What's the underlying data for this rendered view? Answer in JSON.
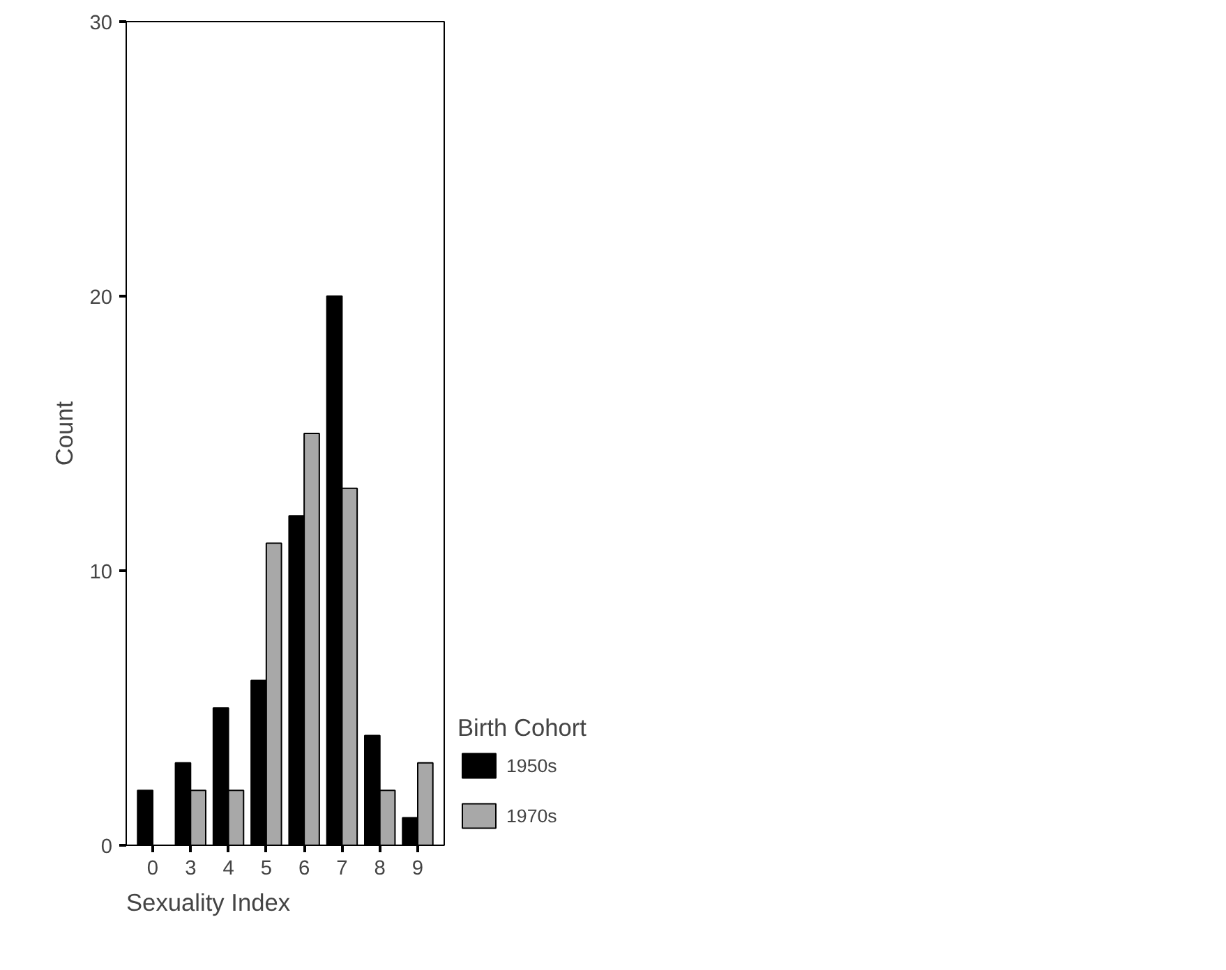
{
  "chart_data": {
    "type": "bar",
    "xlabel": "Sexuality Index",
    "ylabel": "Count",
    "legend_title": "Birth Cohort",
    "categories": [
      "0",
      "3",
      "4",
      "5",
      "6",
      "7",
      "8",
      "9"
    ],
    "series": [
      {
        "name": "1950s",
        "color": "#000000",
        "values": [
          2,
          3,
          5,
          6,
          12,
          20,
          4,
          1
        ]
      },
      {
        "name": "1970s",
        "color": "#a8a8a8",
        "values": [
          null,
          2,
          2,
          11,
          15,
          13,
          2,
          3
        ]
      }
    ],
    "ylim": [
      0,
      30
    ],
    "yticks": [
      0,
      10,
      20,
      30
    ],
    "grid": false,
    "legend": "right"
  }
}
